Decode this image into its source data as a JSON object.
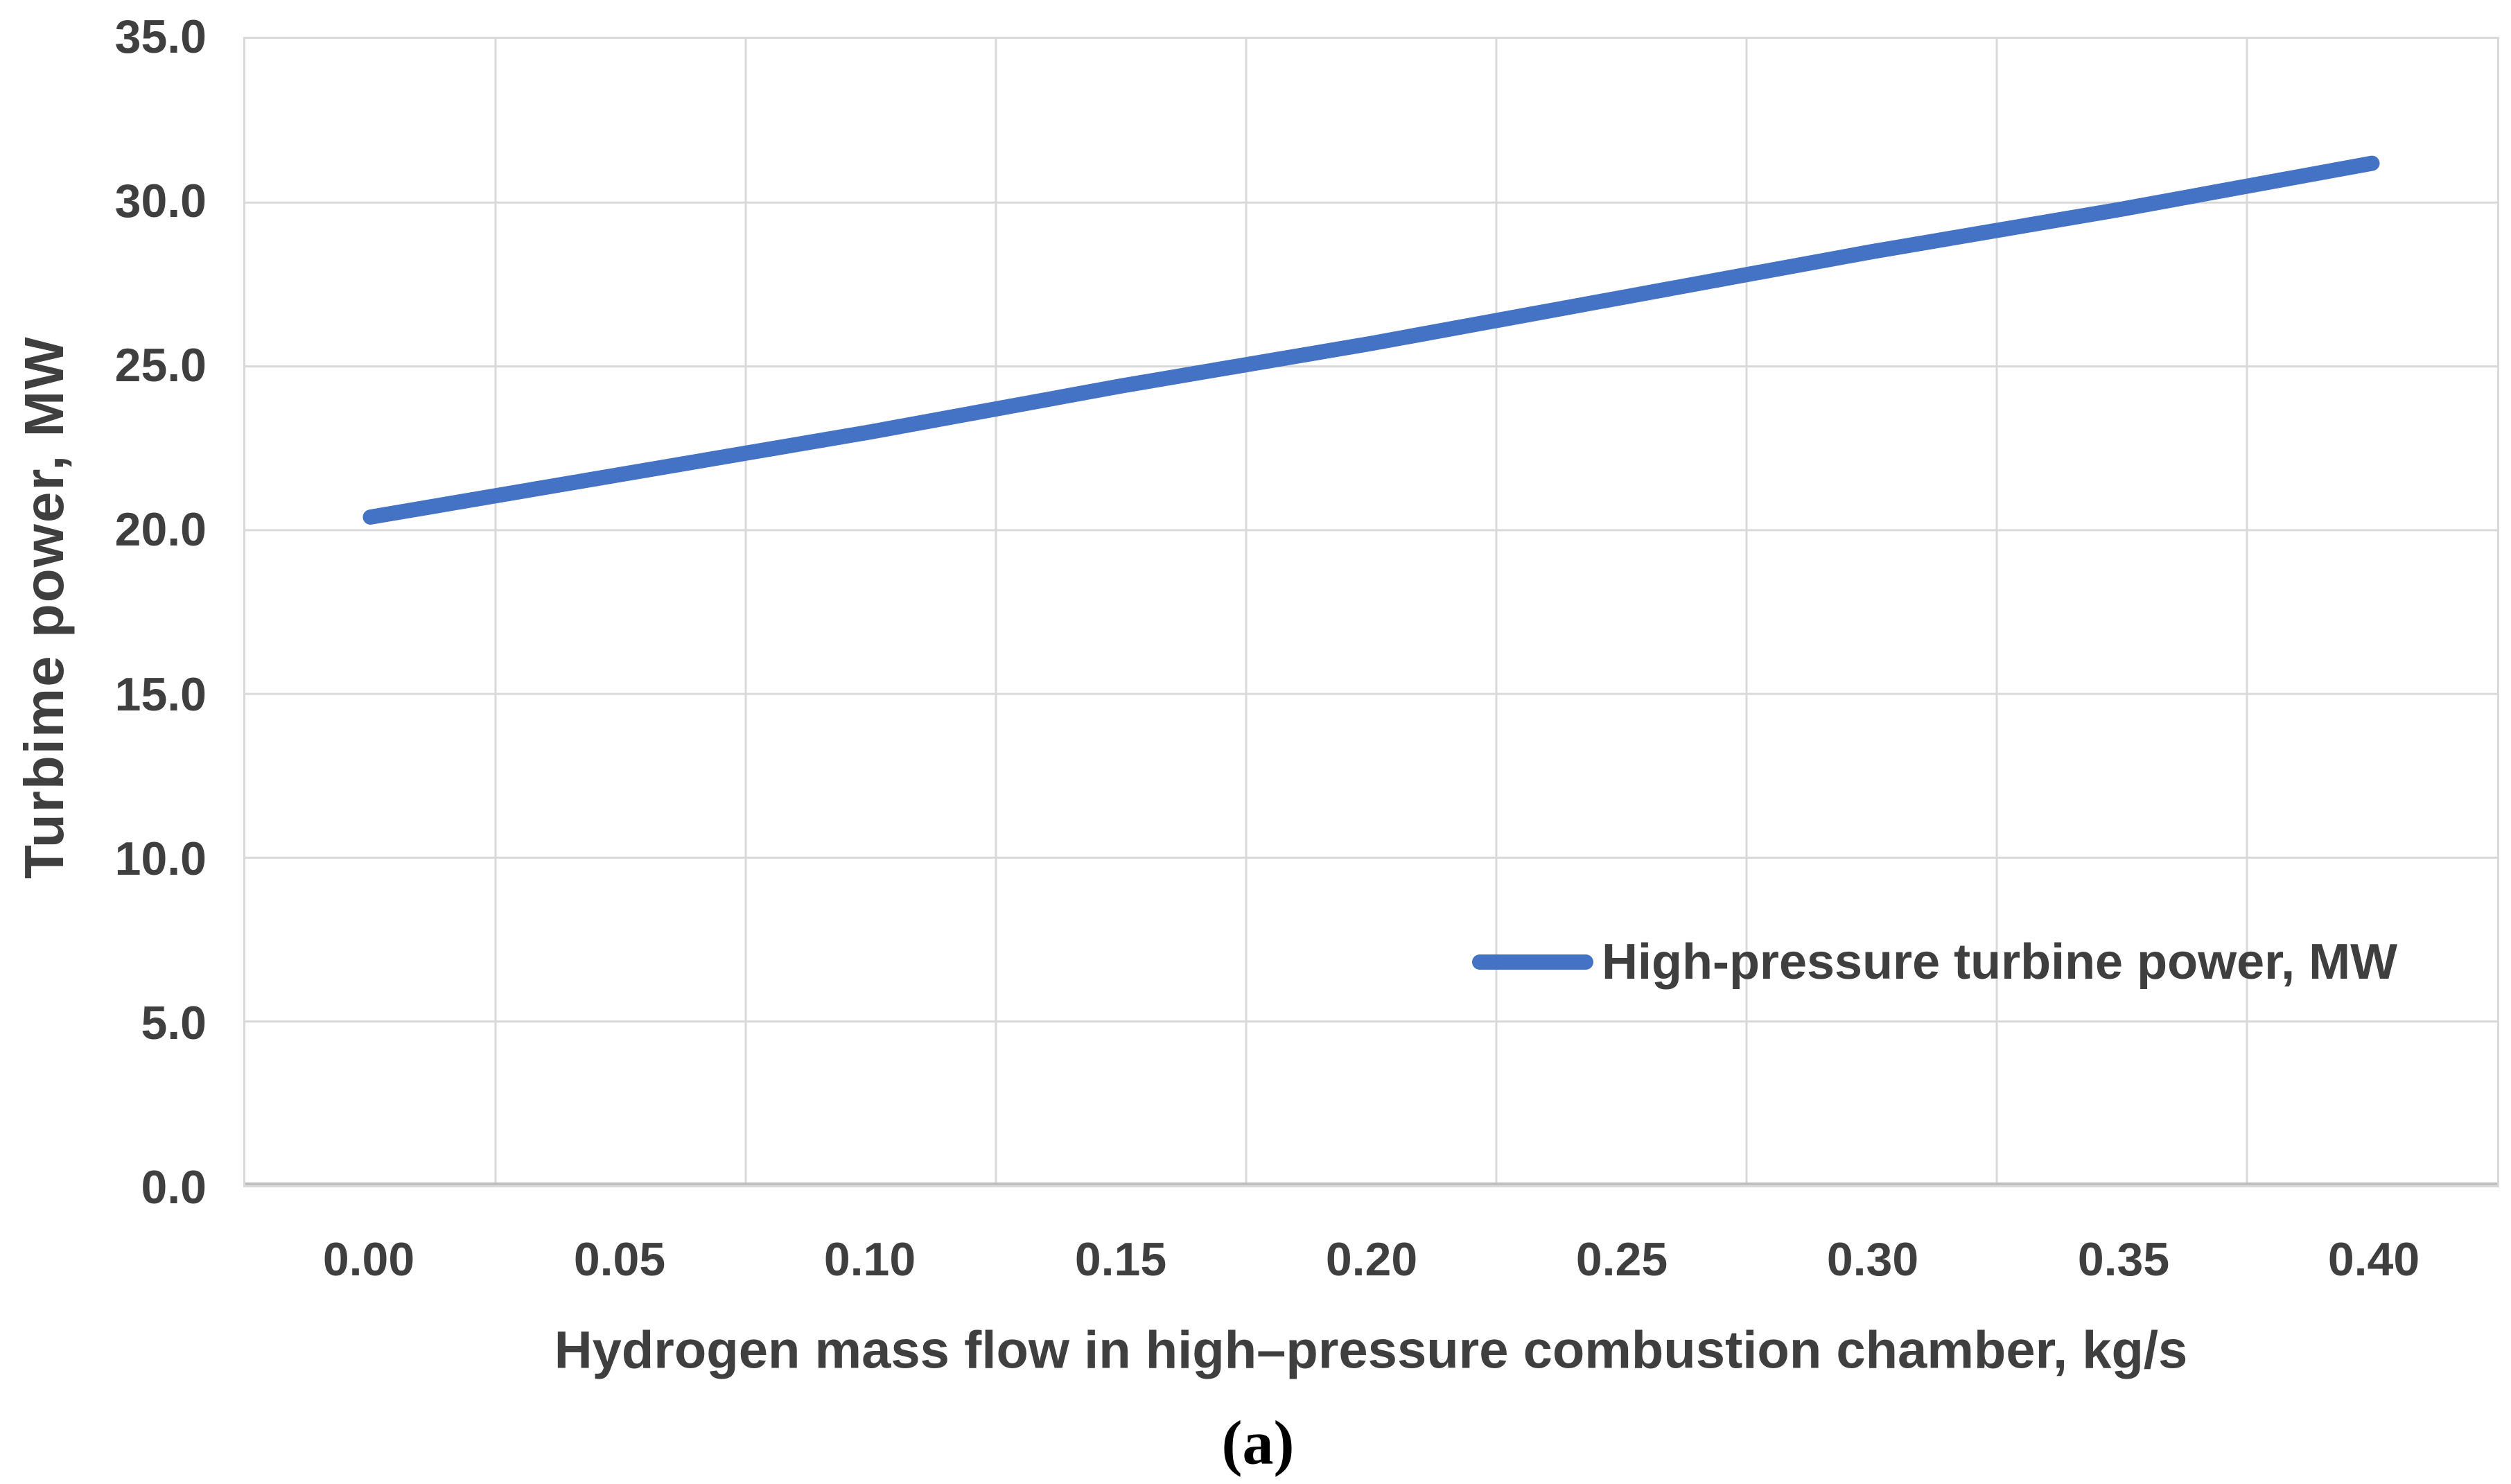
{
  "figure": {
    "caption": "(a)"
  },
  "colors": {
    "series_line": "#4472C4",
    "gridline": "#D9D9D9",
    "axis_line": "#BFBFBF",
    "plot_border": "#D9D9D9",
    "label_text": "#3F3F3F"
  },
  "legend": {
    "label": "High-pressure turbine power, MW"
  },
  "chart_data": {
    "type": "line",
    "title": "",
    "xlabel": "Hydrogen mass flow in high–pressure combustion chamber, kg/s",
    "ylabel": "Turbime power, MW",
    "categories": [
      "0.00",
      "0.05",
      "0.10",
      "0.15",
      "0.20",
      "0.25",
      "0.30",
      "0.35",
      "0.40"
    ],
    "series": [
      {
        "name": "High-pressure turbine power, MW",
        "color": "#4472C4",
        "values": [
          20.4,
          21.7,
          23.0,
          24.4,
          25.7,
          27.1,
          28.5,
          29.8,
          31.2
        ]
      }
    ],
    "yticks": [
      "35.0",
      "30.0",
      "25.0",
      "20.0",
      "15.0",
      "10.0",
      "5.0",
      "0.0"
    ],
    "ylim": [
      0,
      35
    ],
    "xlim_categories": true,
    "grid": true,
    "legend_position": "inside lower right",
    "caption": "(a)"
  }
}
